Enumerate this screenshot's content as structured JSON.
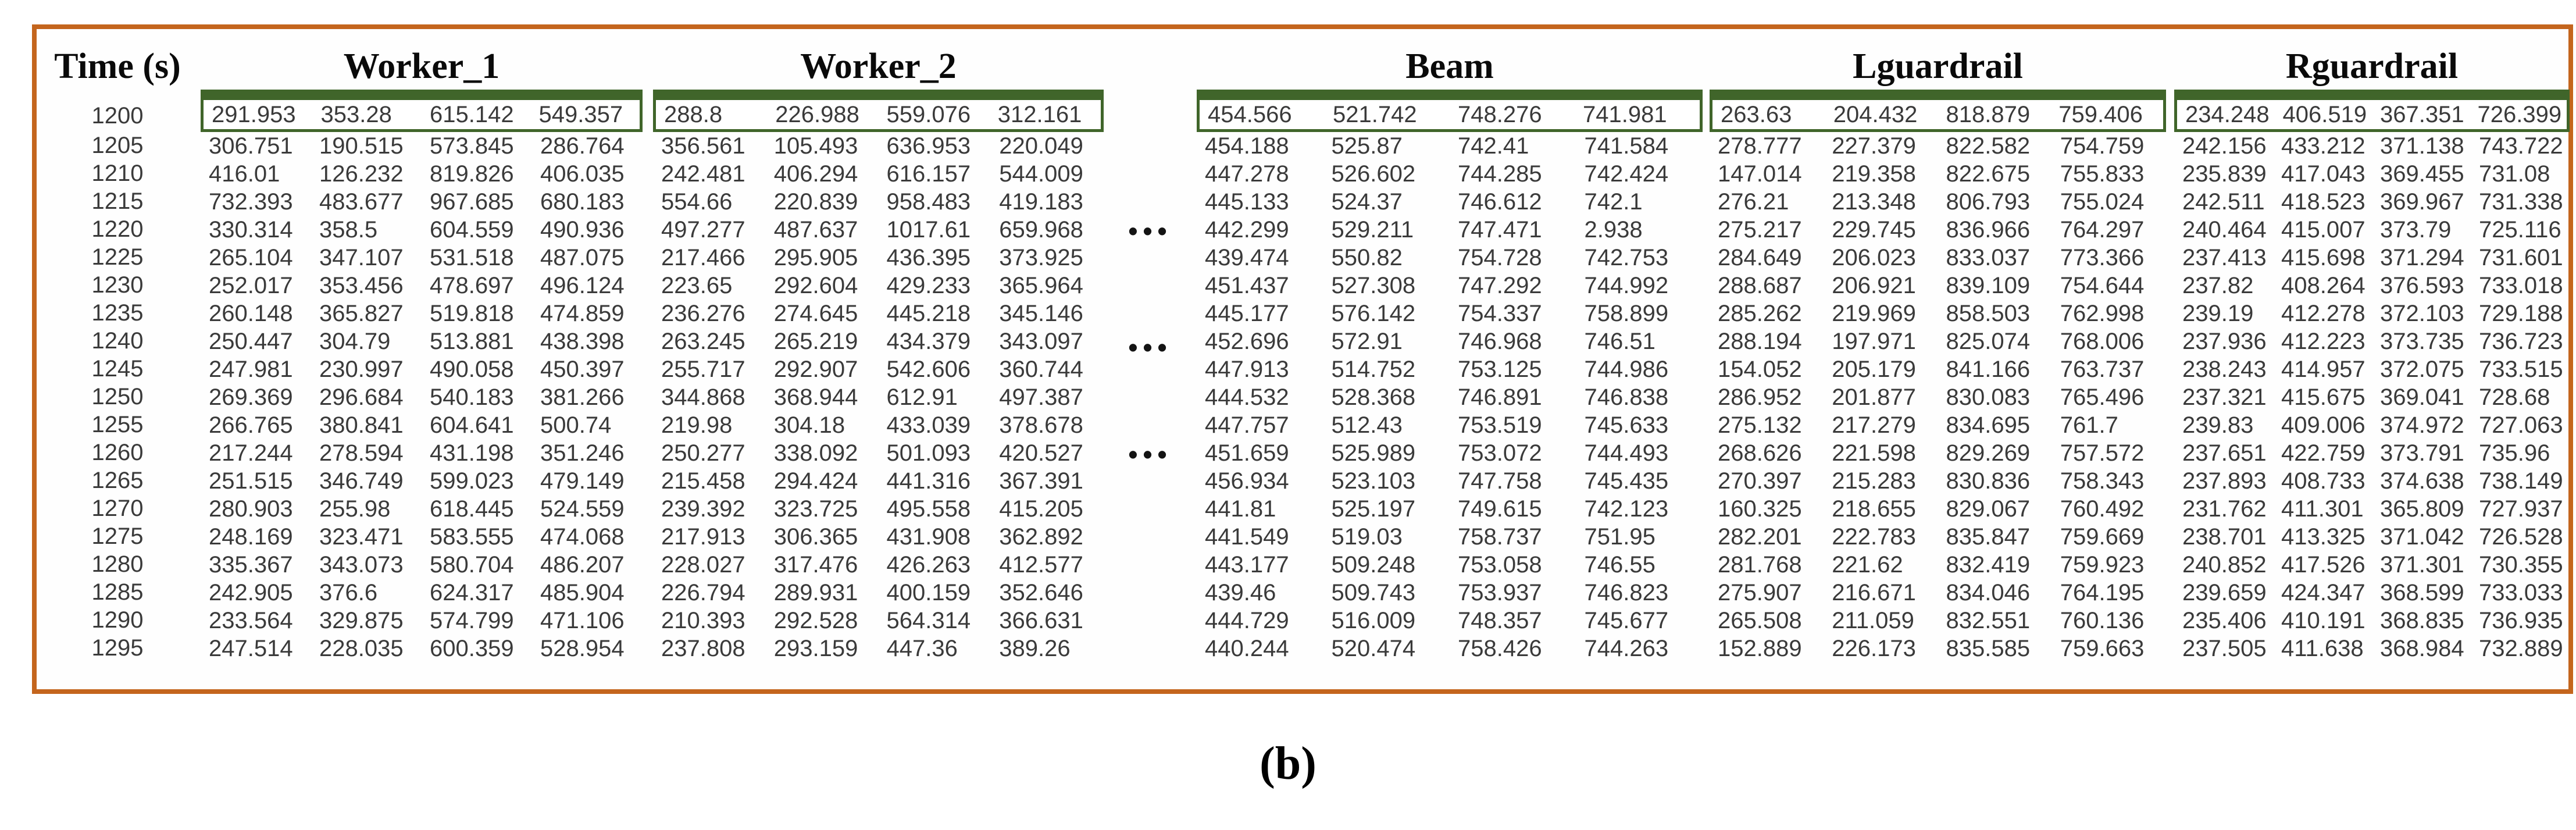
{
  "caption": "(b)",
  "colors": {
    "frame_orange": "#C4651D",
    "box_green": "#40652A",
    "number_text": "#3a3a3a"
  },
  "table": {
    "time_header": "Time (s)",
    "ellipsis": "•••",
    "times": [
      "1200",
      "1205",
      "1210",
      "1215",
      "1220",
      "1225",
      "1230",
      "1235",
      "1240",
      "1245",
      "1250",
      "1255",
      "1260",
      "1265",
      "1270",
      "1275",
      "1280",
      "1285",
      "1290",
      "1295"
    ],
    "groups": [
      {
        "label": "Worker_1",
        "rows": [
          [
            "291.953",
            "353.28",
            "615.142",
            "549.357"
          ],
          [
            "306.751",
            "190.515",
            "573.845",
            "286.764"
          ],
          [
            "416.01",
            "126.232",
            "819.826",
            "406.035"
          ],
          [
            "732.393",
            "483.677",
            "967.685",
            "680.183"
          ],
          [
            "330.314",
            "358.5",
            "604.559",
            "490.936"
          ],
          [
            "265.104",
            "347.107",
            "531.518",
            "487.075"
          ],
          [
            "252.017",
            "353.456",
            "478.697",
            "496.124"
          ],
          [
            "260.148",
            "365.827",
            "519.818",
            "474.859"
          ],
          [
            "250.447",
            "304.79",
            "513.881",
            "438.398"
          ],
          [
            "247.981",
            "230.997",
            "490.058",
            "450.397"
          ],
          [
            "269.369",
            "296.684",
            "540.183",
            "381.266"
          ],
          [
            "266.765",
            "380.841",
            "604.641",
            "500.74"
          ],
          [
            "217.244",
            "278.594",
            "431.198",
            "351.246"
          ],
          [
            "251.515",
            "346.749",
            "599.023",
            "479.149"
          ],
          [
            "280.903",
            "255.98",
            "618.445",
            "524.559"
          ],
          [
            "248.169",
            "323.471",
            "583.555",
            "474.068"
          ],
          [
            "335.367",
            "343.073",
            "580.704",
            "486.207"
          ],
          [
            "242.905",
            "376.6",
            "624.317",
            "485.904"
          ],
          [
            "233.564",
            "329.875",
            "574.799",
            "471.106"
          ],
          [
            "247.514",
            "228.035",
            "600.359",
            "528.954"
          ]
        ]
      },
      {
        "label": "Worker_2",
        "rows": [
          [
            "288.8",
            "226.988",
            "559.076",
            "312.161"
          ],
          [
            "356.561",
            "105.493",
            "636.953",
            "220.049"
          ],
          [
            "242.481",
            "406.294",
            "616.157",
            "544.009"
          ],
          [
            "554.66",
            "220.839",
            "958.483",
            "419.183"
          ],
          [
            "497.277",
            "487.637",
            "1017.61",
            "659.968"
          ],
          [
            "217.466",
            "295.905",
            "436.395",
            "373.925"
          ],
          [
            "223.65",
            "292.604",
            "429.233",
            "365.964"
          ],
          [
            "236.276",
            "274.645",
            "445.218",
            "345.146"
          ],
          [
            "263.245",
            "265.219",
            "434.379",
            "343.097"
          ],
          [
            "255.717",
            "292.907",
            "542.606",
            "360.744"
          ],
          [
            "344.868",
            "368.944",
            "612.91",
            "497.387"
          ],
          [
            "219.98",
            "304.18",
            "433.039",
            "378.678"
          ],
          [
            "250.277",
            "338.092",
            "501.093",
            "420.527"
          ],
          [
            "215.458",
            "294.424",
            "441.316",
            "367.391"
          ],
          [
            "239.392",
            "323.725",
            "495.558",
            "415.205"
          ],
          [
            "217.913",
            "306.365",
            "431.908",
            "362.892"
          ],
          [
            "228.027",
            "317.476",
            "426.263",
            "412.577"
          ],
          [
            "226.794",
            "289.931",
            "400.159",
            "352.646"
          ],
          [
            "210.393",
            "292.528",
            "564.314",
            "366.631"
          ],
          [
            "237.808",
            "293.159",
            "447.36",
            "389.26"
          ]
        ]
      },
      {
        "label": "Beam",
        "rows": [
          [
            "454.566",
            "521.742",
            "748.276",
            "741.981"
          ],
          [
            "454.188",
            "525.87",
            "742.41",
            "741.584"
          ],
          [
            "447.278",
            "526.602",
            "744.285",
            "742.424"
          ],
          [
            "445.133",
            "524.37",
            "746.612",
            "742.1"
          ],
          [
            "442.299",
            "529.211",
            "747.471",
            "2.938"
          ],
          [
            "439.474",
            "550.82",
            "754.728",
            "742.753"
          ],
          [
            "451.437",
            "527.308",
            "747.292",
            "744.992"
          ],
          [
            "445.177",
            "576.142",
            "754.337",
            "758.899"
          ],
          [
            "452.696",
            "572.91",
            "746.968",
            "746.51"
          ],
          [
            "447.913",
            "514.752",
            "753.125",
            "744.986"
          ],
          [
            "444.532",
            "528.368",
            "746.891",
            "746.838"
          ],
          [
            "447.757",
            "512.43",
            "753.519",
            "745.633"
          ],
          [
            "451.659",
            "525.989",
            "753.072",
            "744.493"
          ],
          [
            "456.934",
            "523.103",
            "747.758",
            "745.435"
          ],
          [
            "441.81",
            "525.197",
            "749.615",
            "742.123"
          ],
          [
            "441.549",
            "519.03",
            "758.737",
            "751.95"
          ],
          [
            "443.177",
            "509.248",
            "753.058",
            "746.55"
          ],
          [
            "439.46",
            "509.743",
            "753.937",
            "746.823"
          ],
          [
            "444.729",
            "516.009",
            "748.357",
            "745.677"
          ],
          [
            "440.244",
            "520.474",
            "758.426",
            "744.263"
          ]
        ]
      },
      {
        "label": "Lguardrail",
        "rows": [
          [
            "263.63",
            "204.432",
            "818.879",
            "759.406"
          ],
          [
            "278.777",
            "227.379",
            "822.582",
            "754.759"
          ],
          [
            "147.014",
            "219.358",
            "822.675",
            "755.833"
          ],
          [
            "276.21",
            "213.348",
            "806.793",
            "755.024"
          ],
          [
            "275.217",
            "229.745",
            "836.966",
            "764.297"
          ],
          [
            "284.649",
            "206.023",
            "833.037",
            "773.366"
          ],
          [
            "288.687",
            "206.921",
            "839.109",
            "754.644"
          ],
          [
            "285.262",
            "219.969",
            "858.503",
            "762.998"
          ],
          [
            "288.194",
            "197.971",
            "825.074",
            "768.006"
          ],
          [
            "154.052",
            "205.179",
            "841.166",
            "763.737"
          ],
          [
            "286.952",
            "201.877",
            "830.083",
            "765.496"
          ],
          [
            "275.132",
            "217.279",
            "834.695",
            "761.7"
          ],
          [
            "268.626",
            "221.598",
            "829.269",
            "757.572"
          ],
          [
            "270.397",
            "215.283",
            "830.836",
            "758.343"
          ],
          [
            "160.325",
            "218.655",
            "829.067",
            "760.492"
          ],
          [
            "282.201",
            "222.783",
            "835.847",
            "759.669"
          ],
          [
            "281.768",
            "221.62",
            "832.419",
            "759.923"
          ],
          [
            "275.907",
            "216.671",
            "834.046",
            "764.195"
          ],
          [
            "265.508",
            "211.059",
            "832.551",
            "760.136"
          ],
          [
            "152.889",
            "226.173",
            "835.585",
            "759.663"
          ]
        ]
      },
      {
        "label": "Rguardrail",
        "rows": [
          [
            "234.248",
            "406.519",
            "367.351",
            "726.399"
          ],
          [
            "242.156",
            "433.212",
            "371.138",
            "743.722"
          ],
          [
            "235.839",
            "417.043",
            "369.455",
            "731.08"
          ],
          [
            "242.511",
            "418.523",
            "369.967",
            "731.338"
          ],
          [
            "240.464",
            "415.007",
            "373.79",
            "725.116"
          ],
          [
            "237.413",
            "415.698",
            "371.294",
            "731.601"
          ],
          [
            "237.82",
            "408.264",
            "376.593",
            "733.018"
          ],
          [
            "239.19",
            "412.278",
            "372.103",
            "729.188"
          ],
          [
            "237.936",
            "412.223",
            "373.735",
            "736.723"
          ],
          [
            "238.243",
            "414.957",
            "372.075",
            "733.515"
          ],
          [
            "237.321",
            "415.675",
            "369.041",
            "728.68"
          ],
          [
            "239.83",
            "409.006",
            "374.972",
            "727.063"
          ],
          [
            "237.651",
            "422.759",
            "373.791",
            "735.96"
          ],
          [
            "237.893",
            "408.733",
            "374.638",
            "738.149"
          ],
          [
            "231.762",
            "411.301",
            "365.809",
            "727.937"
          ],
          [
            "238.701",
            "413.325",
            "371.042",
            "726.528"
          ],
          [
            "240.852",
            "417.526",
            "371.301",
            "730.355"
          ],
          [
            "239.659",
            "424.347",
            "368.599",
            "733.033"
          ],
          [
            "235.406",
            "410.191",
            "368.835",
            "736.935"
          ],
          [
            "237.505",
            "411.638",
            "368.984",
            "732.889"
          ]
        ]
      }
    ]
  }
}
